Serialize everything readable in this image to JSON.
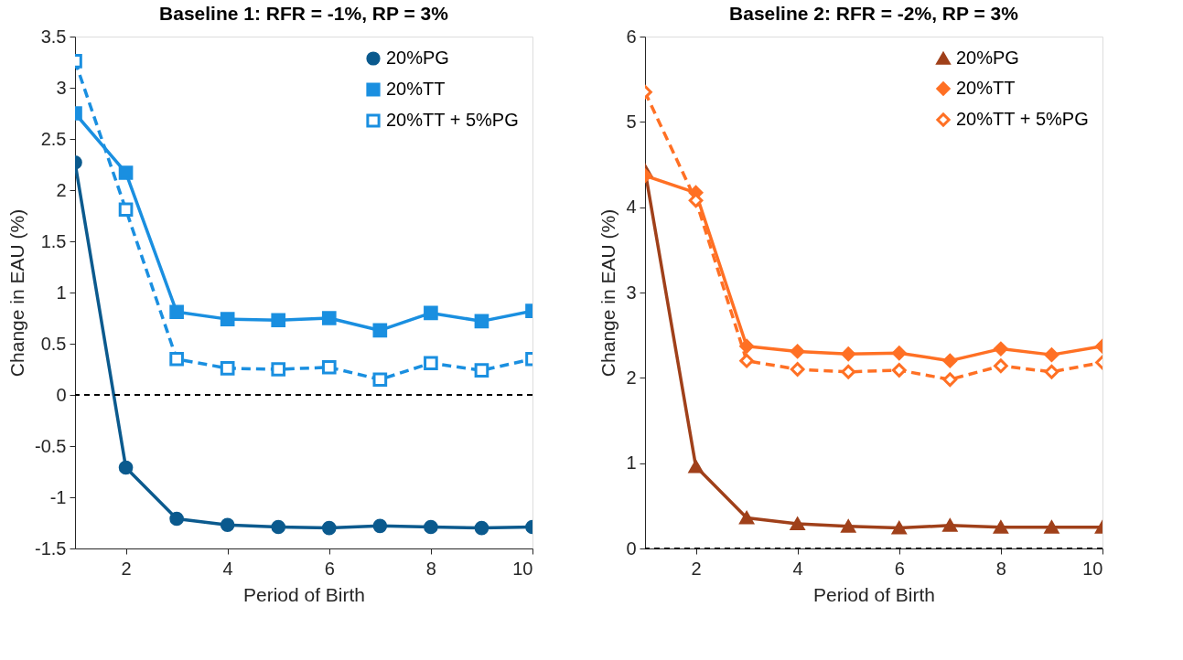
{
  "chart_data": [
    {
      "type": "line",
      "title": "Baseline 1: RFR = -1%, RP = 3%",
      "xlabel": "Period of Birth",
      "ylabel": "Change in EAU (%)",
      "x": [
        1,
        2,
        3,
        4,
        5,
        6,
        7,
        8,
        9,
        10
      ],
      "series": [
        {
          "name": "20%PG",
          "color": "#0b5a8e",
          "marker": "circle",
          "line_style": "solid",
          "values": [
            2.27,
            -0.71,
            -1.21,
            -1.27,
            -1.29,
            -1.3,
            -1.28,
            -1.29,
            -1.3,
            -1.29
          ]
        },
        {
          "name": "20%TT",
          "color": "#1a8fe0",
          "marker": "square",
          "line_style": "solid",
          "values": [
            2.75,
            2.17,
            0.81,
            0.74,
            0.73,
            0.75,
            0.63,
            0.8,
            0.72,
            0.82
          ]
        },
        {
          "name": "20%TT + 5%PG",
          "color": "#1a8fe0",
          "marker": "square",
          "line_style": "dashed",
          "values": [
            3.26,
            1.81,
            0.35,
            0.26,
            0.25,
            0.27,
            0.15,
            0.31,
            0.24,
            0.35
          ]
        }
      ],
      "xlim": [
        1,
        10
      ],
      "xticks": [
        2,
        4,
        6,
        8,
        10
      ],
      "ylim": [
        -1.5,
        3.5
      ],
      "yticks": [
        -1.5,
        -1,
        -0.5,
        0,
        0.5,
        1,
        1.5,
        2,
        2.5,
        3,
        3.5
      ],
      "ref_lines": [
        {
          "axis": "y",
          "value": 0,
          "color": "#000000",
          "line_style": "dashed"
        }
      ],
      "legend": "top right",
      "grid": false
    },
    {
      "type": "line",
      "title": "Baseline 2: RFR = -2%, RP = 3%",
      "xlabel": "Period of Birth",
      "ylabel": "Change in EAU (%)",
      "x": [
        1,
        2,
        3,
        4,
        5,
        6,
        7,
        8,
        9,
        10
      ],
      "series": [
        {
          "name": "20%PG",
          "color": "#a0401a",
          "marker": "triangle",
          "line_style": "solid",
          "values": [
            4.43,
            0.96,
            0.36,
            0.29,
            0.26,
            0.24,
            0.27,
            0.25,
            0.25,
            0.25
          ]
        },
        {
          "name": "20%TT",
          "color": "#ff7024",
          "marker": "diamond",
          "line_style": "solid",
          "values": [
            4.37,
            4.17,
            2.37,
            2.31,
            2.28,
            2.29,
            2.2,
            2.34,
            2.27,
            2.37
          ]
        },
        {
          "name": "20%TT + 5%PG",
          "color": "#ff7024",
          "marker": "diamond",
          "line_style": "dashed",
          "values": [
            5.35,
            4.08,
            2.2,
            2.1,
            2.07,
            2.09,
            1.98,
            2.14,
            2.07,
            2.18
          ]
        }
      ],
      "xlim": [
        1,
        10
      ],
      "xticks": [
        2,
        4,
        6,
        8,
        10
      ],
      "ylim": [
        0,
        6
      ],
      "yticks": [
        0,
        1,
        2,
        3,
        4,
        5,
        6
      ],
      "ref_lines": [
        {
          "axis": "y",
          "value": 0,
          "color": "#000000",
          "line_style": "dashed"
        }
      ],
      "legend": "top right",
      "grid": false
    }
  ]
}
